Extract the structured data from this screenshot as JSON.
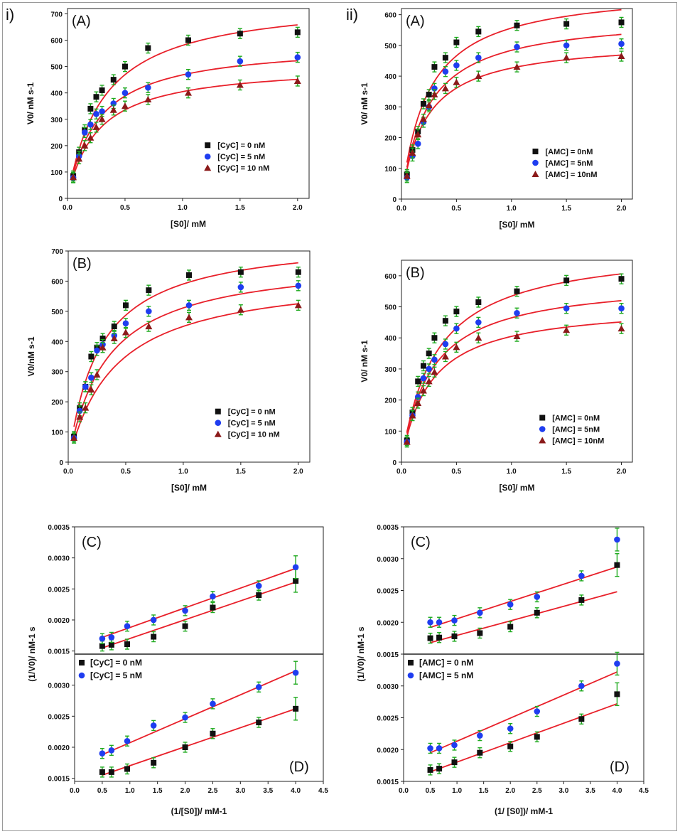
{
  "figure": {
    "roman_left": "i)",
    "roman_right": "ii)"
  },
  "colors": {
    "fit": "#e8202a",
    "err": "#1faa1f",
    "black": "#111111",
    "blue": "#1f3df0",
    "red": "#8b1a1a"
  },
  "chart_data": [
    {
      "id": "iA",
      "type": "scatter",
      "panel_label": "(A)",
      "xlabel": "[S0]/ mM",
      "ylabel": "V0/ nM s-1",
      "xlim": [
        0,
        2.1
      ],
      "ylim": [
        0,
        720
      ],
      "xticks": [
        "0.0",
        "0.5",
        "1.0",
        "1.5",
        "2.0"
      ],
      "yticks": [
        "0",
        "100",
        "200",
        "300",
        "400",
        "500",
        "600",
        "700"
      ],
      "legend": [
        "[CyC] = 0 nM",
        "[CyC] = 5 nM",
        "[CyC] = 10 nM"
      ],
      "x": [
        0.05,
        0.1,
        0.15,
        0.2,
        0.25,
        0.3,
        0.4,
        0.5,
        0.7,
        1.05,
        1.5,
        2.0
      ],
      "series": [
        {
          "name": "[CyC] = 0 nM",
          "marker": "square",
          "values": [
            85,
            175,
            260,
            340,
            385,
            410,
            450,
            500,
            570,
            600,
            625,
            630
          ],
          "fit": {
            "vmax": 760,
            "km": 0.31
          }
        },
        {
          "name": "[CyC] = 5 nM",
          "marker": "circle",
          "values": [
            78,
            160,
            250,
            280,
            320,
            330,
            360,
            400,
            420,
            470,
            520,
            535
          ],
          "fit": {
            "vmax": 590,
            "km": 0.26
          }
        },
        {
          "name": "[CyC] = 10 nM",
          "marker": "triangle",
          "values": [
            80,
            150,
            200,
            230,
            270,
            300,
            335,
            350,
            375,
            400,
            430,
            445
          ],
          "fit": {
            "vmax": 510,
            "km": 0.26
          }
        }
      ]
    },
    {
      "id": "iiA",
      "type": "scatter",
      "panel_label": "(A)",
      "xlabel": "[S0]/ mM",
      "ylabel": "V0/ nM s-1",
      "xlim": [
        0,
        2.1
      ],
      "ylim": [
        0,
        620
      ],
      "xticks": [
        "0.0",
        "0.5",
        "1.0",
        "1.5",
        "2.0"
      ],
      "yticks": [
        "0",
        "100",
        "200",
        "300",
        "400",
        "500",
        "600"
      ],
      "legend": [
        "[AMC] = 0nM",
        "[AMC] = 5nM",
        "[AMC] = 10nM"
      ],
      "x": [
        0.05,
        0.1,
        0.15,
        0.2,
        0.25,
        0.3,
        0.4,
        0.5,
        0.7,
        1.05,
        1.5,
        2.0
      ],
      "series": [
        {
          "name": "[AMC] = 0nM",
          "marker": "square",
          "values": [
            80,
            160,
            220,
            310,
            340,
            430,
            460,
            510,
            545,
            565,
            570,
            575
          ],
          "fit": {
            "vmax": 690,
            "km": 0.24
          }
        },
        {
          "name": "[AMC] = 5nM",
          "marker": "circle",
          "values": [
            70,
            140,
            180,
            250,
            300,
            360,
            415,
            435,
            460,
            495,
            500,
            505
          ],
          "fit": {
            "vmax": 600,
            "km": 0.24
          }
        },
        {
          "name": "[AMC] = 10nM",
          "marker": "triangle",
          "values": [
            75,
            150,
            210,
            260,
            305,
            340,
            360,
            380,
            400,
            430,
            460,
            465
          ],
          "fit": {
            "vmax": 520,
            "km": 0.22
          }
        }
      ]
    },
    {
      "id": "iB",
      "type": "scatter",
      "panel_label": "(B)",
      "xlabel": "[S0]/ mM",
      "ylabel": "V0/nM s-1",
      "xlim": [
        0,
        2.1
      ],
      "ylim": [
        0,
        700
      ],
      "xticks": [
        "0.0",
        "0.5",
        "1.0",
        "1.5",
        "2.0"
      ],
      "yticks": [
        "0",
        "100",
        "200",
        "300",
        "400",
        "500",
        "600",
        "700"
      ],
      "legend": [
        "[CyC] = 0 nM",
        "[CyC] = 5 nM",
        "[CyC] = 10 nM"
      ],
      "x": [
        0.05,
        0.1,
        0.15,
        0.2,
        0.25,
        0.3,
        0.4,
        0.5,
        0.7,
        1.05,
        1.5,
        2.0
      ],
      "series": [
        {
          "name": "[CyC] = 0 nM",
          "marker": "square",
          "values": [
            85,
            180,
            250,
            350,
            380,
            410,
            450,
            520,
            570,
            620,
            630,
            630
          ],
          "fit": {
            "vmax": 750,
            "km": 0.27
          }
        },
        {
          "name": "[CyC] = 5 nM",
          "marker": "circle",
          "values": [
            80,
            170,
            250,
            280,
            370,
            390,
            420,
            460,
            500,
            520,
            580,
            585
          ],
          "fit": {
            "vmax": 680,
            "km": 0.33
          }
        },
        {
          "name": "[CyC] = 10 nM",
          "marker": "triangle",
          "values": [
            80,
            150,
            180,
            240,
            290,
            380,
            410,
            430,
            450,
            480,
            505,
            520
          ],
          "fit": {
            "vmax": 630,
            "km": 0.4
          }
        }
      ]
    },
    {
      "id": "iiB",
      "type": "scatter",
      "panel_label": "(B)",
      "xlabel": "[S0]/ mM",
      "ylabel": "V0/ nM s-1",
      "xlim": [
        0,
        2.1
      ],
      "ylim": [
        0,
        650
      ],
      "xticks": [
        "0.0",
        "0.5",
        "1.0",
        "1.5",
        "2.0"
      ],
      "yticks": [
        "0",
        "100",
        "200",
        "300",
        "400",
        "500",
        "600"
      ],
      "legend": [
        "[AMC] = 0nM",
        "[AMC] = 5nM",
        "[AMC] = 10nM"
      ],
      "x": [
        0.05,
        0.1,
        0.15,
        0.2,
        0.25,
        0.3,
        0.4,
        0.5,
        0.7,
        1.05,
        1.5,
        2.0
      ],
      "series": [
        {
          "name": "[AMC] = 0nM",
          "marker": "square",
          "values": [
            70,
            160,
            260,
            310,
            350,
            400,
            455,
            485,
            515,
            550,
            585,
            590
          ],
          "fit": {
            "vmax": 700,
            "km": 0.31
          }
        },
        {
          "name": "[AMC] = 5nM",
          "marker": "circle",
          "values": [
            65,
            150,
            210,
            270,
            300,
            330,
            380,
            430,
            450,
            480,
            495,
            495
          ],
          "fit": {
            "vmax": 590,
            "km": 0.27
          }
        },
        {
          "name": "[AMC] = 10nM",
          "marker": "triangle",
          "values": [
            65,
            150,
            190,
            230,
            260,
            290,
            340,
            370,
            400,
            405,
            425,
            430
          ],
          "fit": {
            "vmax": 510,
            "km": 0.26
          }
        }
      ]
    },
    {
      "id": "iCD",
      "type": "scatter",
      "panel_label_top": "(C)",
      "panel_label_bottom": "(D)",
      "xlabel": "(1/[S0])/ mM-1",
      "ylabel": "(1/V0)/ nM-1 s",
      "xlim": [
        0,
        4.5
      ],
      "top_ylim": [
        0.00145,
        0.0035
      ],
      "bottom_ylim": [
        0.00145,
        0.0035
      ],
      "xticks": [
        "0.0",
        "0.5",
        "1.0",
        "1.5",
        "2.0",
        "2.5",
        "3.0",
        "3.5",
        "4.0",
        "4.5"
      ],
      "top_yticks": [
        "0.0015",
        "0.0020",
        "0.0025",
        "0.0030",
        "0.0035"
      ],
      "bottom_yticks": [
        "0.0015",
        "0.0020",
        "0.0025",
        "0.0030"
      ],
      "legend": [
        "[CyC] = 0 nM",
        "[CyC] = 5 nM"
      ],
      "x": [
        0.5,
        0.667,
        0.952,
        1.429,
        2.0,
        2.5,
        3.333,
        4.0
      ],
      "top_series": [
        {
          "name": "[CyC] = 0 nM",
          "marker": "square",
          "values": [
            0.00158,
            0.0016,
            0.00161,
            0.00173,
            0.0019,
            0.0022,
            0.0024,
            0.00263
          ],
          "fit": [
            0.00155,
            0.00261
          ]
        },
        {
          "name": "[CyC] = 5 nM",
          "marker": "circle",
          "values": [
            0.0017,
            0.00172,
            0.0019,
            0.002,
            0.00215,
            0.00238,
            0.00255,
            0.00285
          ],
          "fit": [
            0.00172,
            0.00283
          ]
        }
      ],
      "bottom_series": [
        {
          "name": "[CyC] = 0 nM",
          "marker": "square",
          "values": [
            0.0016,
            0.0016,
            0.00165,
            0.00175,
            0.002,
            0.00222,
            0.0024,
            0.00262
          ],
          "fit": [
            0.00155,
            0.00262
          ]
        },
        {
          "name": "[CyC] = 5 nM",
          "marker": "circle",
          "values": [
            0.0019,
            0.00195,
            0.0021,
            0.00235,
            0.00248,
            0.0027,
            0.00297,
            0.0032
          ],
          "fit": [
            0.00188,
            0.00323
          ]
        }
      ]
    },
    {
      "id": "iiCD",
      "type": "scatter",
      "panel_label_top": "(C)",
      "panel_label_bottom": "(D)",
      "xlabel": "(1/ [S0])/ mM-1",
      "ylabel": "(1/V0)/ nM-1 s",
      "xlim": [
        0,
        4.5
      ],
      "top_ylim": [
        0.0015,
        0.0035
      ],
      "bottom_ylim": [
        0.0015,
        0.0035
      ],
      "xticks": [
        "0.0",
        "0.5",
        "1.0",
        "1.5",
        "2.0",
        "2.5",
        "3.0",
        "3.5",
        "4.0",
        "4.5"
      ],
      "top_yticks": [
        "0.0015",
        "0.0020",
        "0.0025",
        "0.0030",
        "0.0035"
      ],
      "bottom_yticks": [
        "0.0015",
        "0.0020",
        "0.0025",
        "0.0030"
      ],
      "legend": [
        "[AMC] = 0 nM",
        "[AMC] = 5 nM"
      ],
      "x": [
        0.5,
        0.667,
        0.952,
        1.429,
        2.0,
        2.5,
        3.333,
        4.0
      ],
      "top_series": [
        {
          "name": "[AMC] = 0 nM",
          "marker": "square",
          "values": [
            0.00175,
            0.00176,
            0.00178,
            0.00183,
            0.00193,
            0.00215,
            0.00235,
            0.0029
          ],
          "fit": [
            0.00168,
            0.00248
          ]
        },
        {
          "name": "[AMC] = 5 nM",
          "marker": "circle",
          "values": [
            0.002,
            0.002,
            0.00203,
            0.00215,
            0.00228,
            0.0024,
            0.00273,
            0.0033
          ],
          "fit": [
            0.00192,
            0.00287
          ]
        }
      ],
      "bottom_series": [
        {
          "name": "[AMC] = 0 nM",
          "marker": "square",
          "values": [
            0.00168,
            0.0017,
            0.0018,
            0.00195,
            0.00205,
            0.0022,
            0.00248,
            0.00287
          ],
          "fit": [
            0.00165,
            0.00272
          ]
        },
        {
          "name": "[AMC] = 5 nM",
          "marker": "circle",
          "values": [
            0.00202,
            0.00202,
            0.00207,
            0.00222,
            0.00233,
            0.0026,
            0.003,
            0.00335
          ],
          "fit": [
            0.00195,
            0.00322
          ]
        }
      ]
    }
  ]
}
